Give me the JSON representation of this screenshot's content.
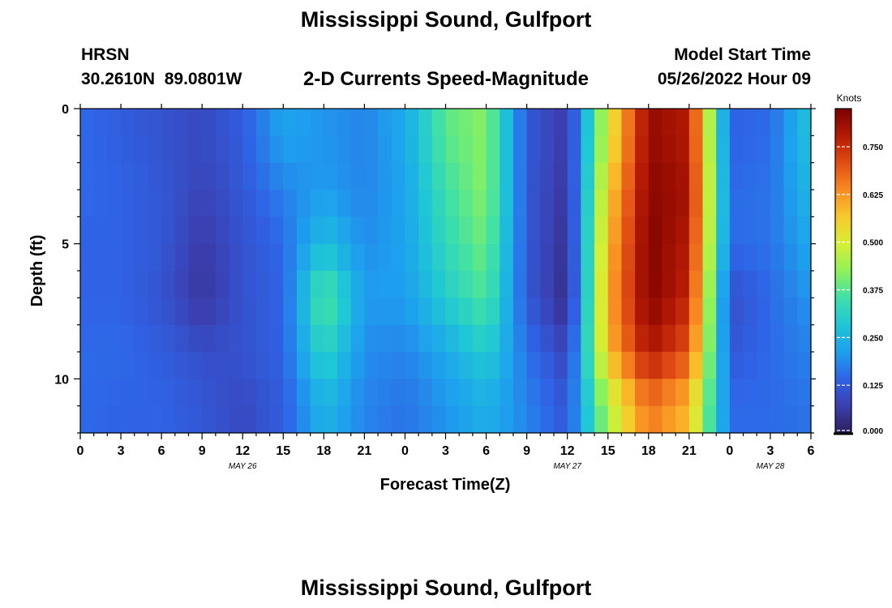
{
  "page": {
    "title": "Mississippi Sound, Gulfport",
    "bottom_title": "Mississippi Sound, Gulfport",
    "station_id": "HRSN",
    "station_coords": "30.2610N  89.0801W",
    "subtitle": "2-D Currents Speed-Magnitude",
    "model_start_label": "Model Start Time",
    "model_start_value": "05/26/2022 Hour 09"
  },
  "colors": {
    "palette": [
      "#2c1f5c",
      "#3b3fb0",
      "#2f63e6",
      "#1ea0ee",
      "#1fc6d6",
      "#3fe0a8",
      "#8ff25a",
      "#d6ef34",
      "#f8c92c",
      "#f88a22",
      "#e04c14",
      "#b41a04",
      "#7a0000"
    ]
  },
  "chart_data": {
    "type": "heatmap",
    "xlabel": "Forecast Time(Z)",
    "ylabel": "Depth (ft)",
    "colorbar_label": "Knots",
    "x_ticks": [
      "0",
      "3",
      "6",
      "9",
      "12",
      "15",
      "18",
      "21",
      "0",
      "3",
      "6",
      "9",
      "12",
      "15",
      "18",
      "21",
      "0",
      "3",
      "6"
    ],
    "x_range_hours": [
      0,
      54
    ],
    "date_labels": [
      {
        "text": "MAY 26",
        "at_hour": 12
      },
      {
        "text": "MAY 27",
        "at_hour": 36
      },
      {
        "text": "MAY 28",
        "at_hour": 51
      }
    ],
    "y_ticks": [
      "0",
      "5",
      "10"
    ],
    "y_range_ft": [
      0,
      12
    ],
    "colorbar_ticks": [
      "0.750",
      "0.625",
      "0.500",
      "0.375",
      "0.250",
      "0.125",
      "0.000"
    ],
    "vmin": 0.0,
    "vmax": 0.85,
    "time_columns_hours": [
      0,
      3,
      6,
      9,
      12,
      15,
      18,
      21,
      24,
      27,
      30,
      33,
      36,
      39,
      42,
      45,
      48,
      51,
      54
    ],
    "depth_rows_ft": [
      1,
      3,
      5,
      7,
      9,
      11
    ],
    "speed_knots": [
      [
        0.15,
        0.13,
        0.11,
        0.09,
        0.13,
        0.22,
        0.2,
        0.18,
        0.23,
        0.38,
        0.42,
        0.12,
        0.06,
        0.5,
        0.82,
        0.78,
        0.14,
        0.15,
        0.28
      ],
      [
        0.15,
        0.14,
        0.12,
        0.08,
        0.12,
        0.18,
        0.21,
        0.18,
        0.22,
        0.35,
        0.42,
        0.12,
        0.05,
        0.55,
        0.83,
        0.8,
        0.15,
        0.16,
        0.26
      ],
      [
        0.14,
        0.14,
        0.12,
        0.06,
        0.11,
        0.15,
        0.27,
        0.19,
        0.22,
        0.33,
        0.4,
        0.12,
        0.04,
        0.58,
        0.84,
        0.78,
        0.15,
        0.16,
        0.23
      ],
      [
        0.14,
        0.14,
        0.11,
        0.05,
        0.11,
        0.14,
        0.38,
        0.21,
        0.21,
        0.3,
        0.37,
        0.12,
        0.03,
        0.6,
        0.84,
        0.76,
        0.1,
        0.15,
        0.2
      ],
      [
        0.15,
        0.15,
        0.13,
        0.1,
        0.11,
        0.14,
        0.32,
        0.19,
        0.18,
        0.23,
        0.3,
        0.16,
        0.08,
        0.58,
        0.79,
        0.7,
        0.12,
        0.15,
        0.18
      ],
      [
        0.15,
        0.14,
        0.14,
        0.12,
        0.09,
        0.13,
        0.25,
        0.18,
        0.16,
        0.2,
        0.24,
        0.18,
        0.12,
        0.45,
        0.66,
        0.58,
        0.15,
        0.15,
        0.16
      ]
    ]
  }
}
